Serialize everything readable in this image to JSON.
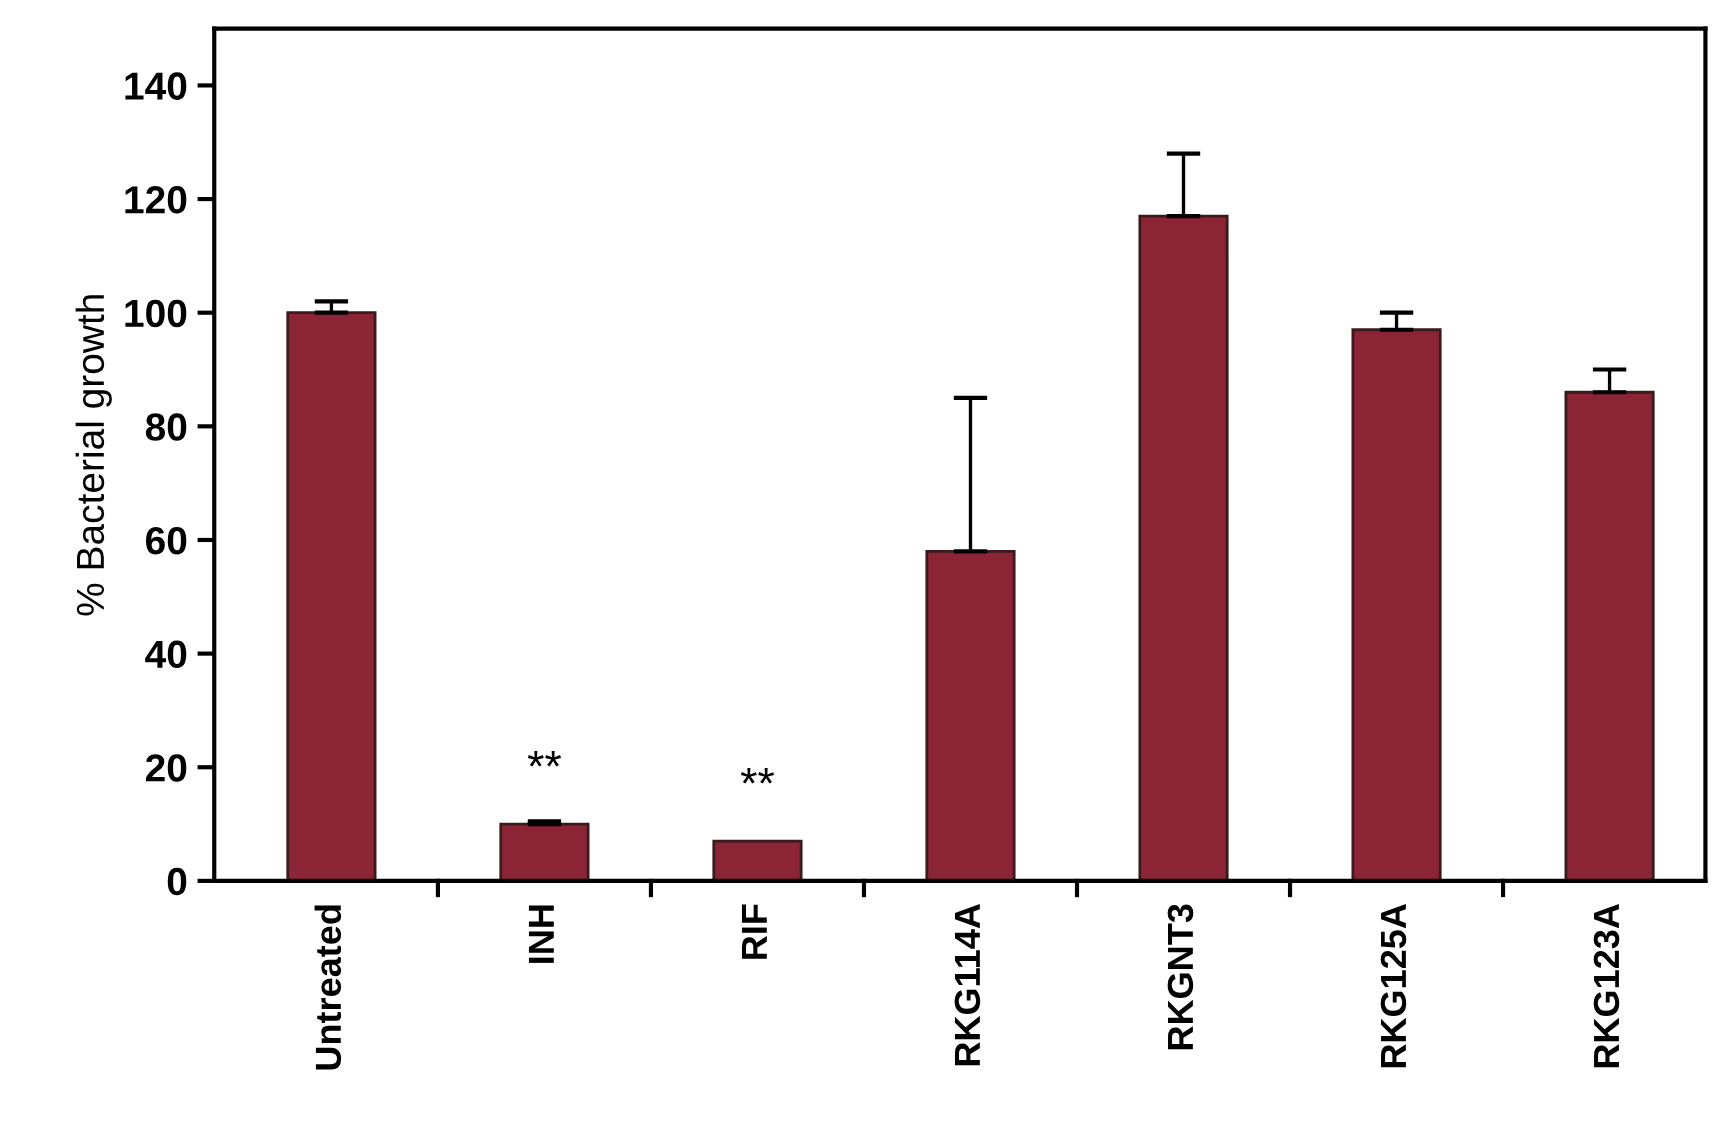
{
  "chart_data": {
    "type": "bar",
    "ylabel": "% Bacterial growth",
    "categories": [
      "Untreated",
      "INH",
      "RIF",
      "RKG114A",
      "RKGNT3",
      "RKG125A",
      "RKG123A"
    ],
    "values": [
      100,
      10,
      7,
      58,
      117,
      97,
      86
    ],
    "errors": [
      2,
      0.5,
      null,
      27,
      11,
      3,
      4
    ],
    "color": "#8b2535",
    "ylim": [
      0,
      150
    ],
    "yticks": [
      0,
      20,
      40,
      60,
      80,
      100,
      120,
      140
    ],
    "grid": false,
    "annotations": [
      {
        "text": "**",
        "x": "INH",
        "y": 10
      },
      {
        "text": "**",
        "x": "RIF",
        "y": 7
      }
    ]
  }
}
